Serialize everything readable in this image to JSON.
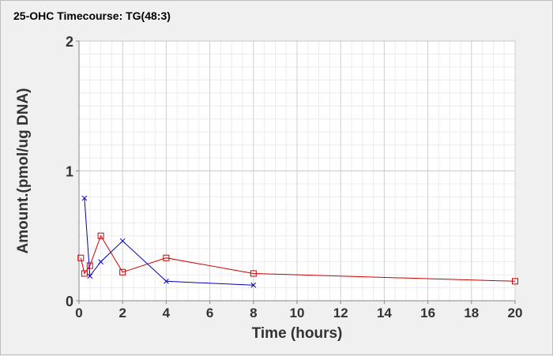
{
  "chart_data": {
    "type": "line",
    "title": "25-OHC Timecourse: TG(48:3)",
    "xlabel": "Time (hours)",
    "ylabel": "Amount.(pmol/ug DNA)",
    "xlim": [
      0,
      20
    ],
    "ylim": [
      0,
      2
    ],
    "x_ticks": [
      0,
      2,
      4,
      6,
      8,
      10,
      12,
      14,
      16,
      18,
      20
    ],
    "y_ticks": [
      0,
      1,
      2
    ],
    "grid": true,
    "legend": "none",
    "series": [
      {
        "color": "#cc0000",
        "marker": "square",
        "x": [
          0.083,
          0.25,
          0.5,
          1,
          2,
          4,
          8,
          20
        ],
        "values": [
          0.33,
          0.21,
          0.27,
          0.5,
          0.22,
          0.33,
          0.21,
          0.15
        ]
      },
      {
        "color": "#0000bb",
        "marker": "x",
        "x": [
          0.25,
          0.5,
          1,
          2,
          4,
          8
        ],
        "values": [
          0.79,
          0.19,
          0.3,
          0.46,
          0.15,
          0.12
        ]
      }
    ]
  }
}
